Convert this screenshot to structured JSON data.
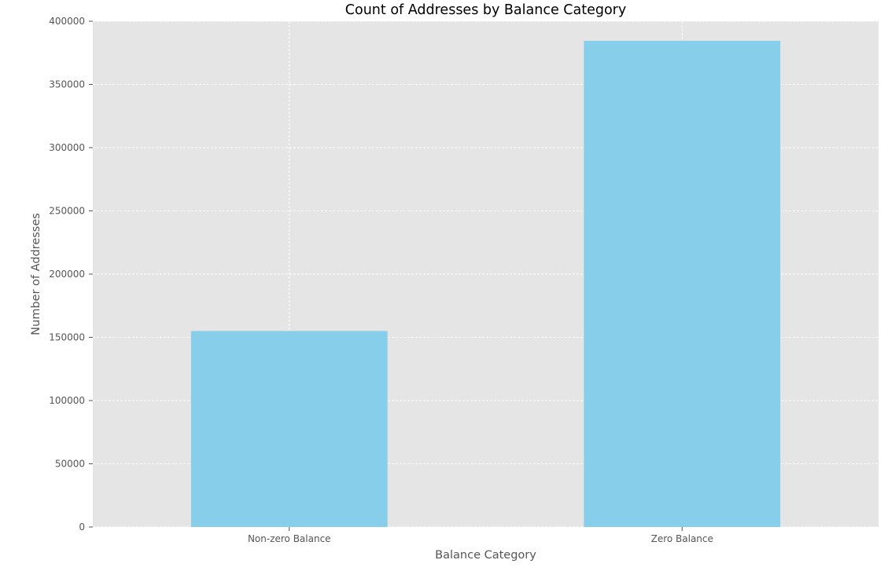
{
  "chart_data": {
    "type": "bar",
    "title": "Count of Addresses by Balance Category",
    "xlabel": "Balance Category",
    "ylabel": "Number of Addresses",
    "categories": [
      "Non-zero Balance",
      "Zero Balance"
    ],
    "values": [
      155000,
      384500
    ],
    "ylim": [
      0,
      400000
    ],
    "yticks": [
      0,
      50000,
      100000,
      150000,
      200000,
      250000,
      300000,
      350000,
      400000
    ],
    "ytick_labels": [
      "0",
      "50000",
      "100000",
      "150000",
      "200000",
      "250000",
      "300000",
      "350000",
      "400000"
    ],
    "grid": true,
    "legend": "none",
    "colors": {
      "bar": "#87CEEB",
      "plot_background": "#E5E5E5",
      "grid": "#FFFFFF",
      "text": "#555555",
      "title": "#000000"
    }
  }
}
